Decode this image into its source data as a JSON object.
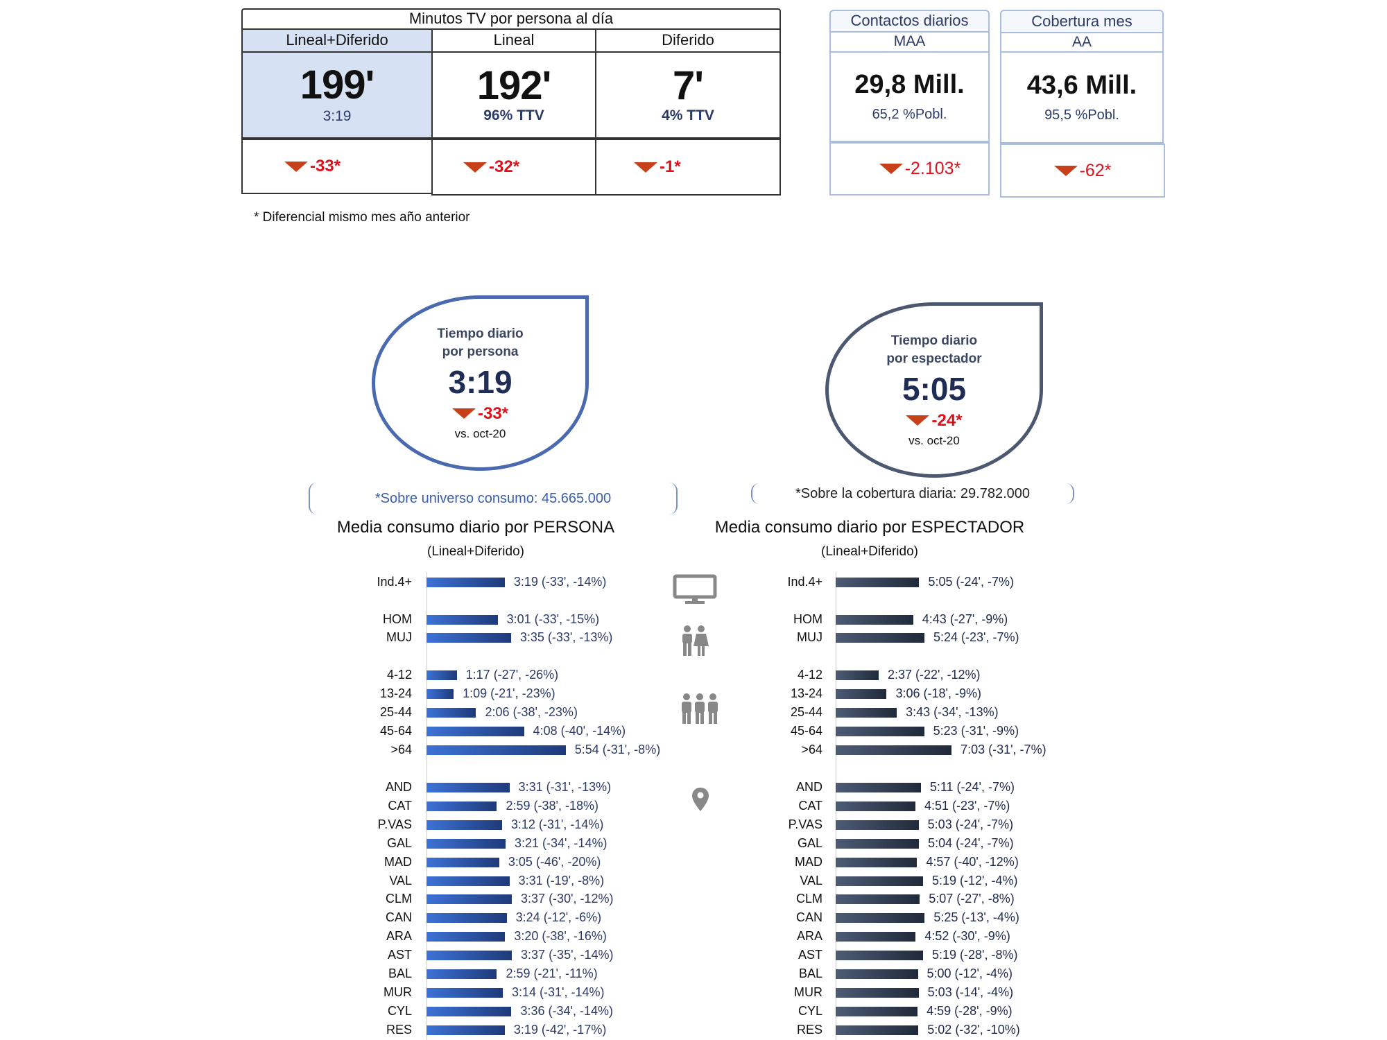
{
  "top_table": {
    "title": "Minutos TV por persona al día",
    "columns": [
      {
        "header": "Lineal+Diferido",
        "value": "199'",
        "sub": "3:19",
        "delta": "-33*"
      },
      {
        "header": "Lineal",
        "value": "192'",
        "sub": "96% TTV",
        "delta": "-32*"
      },
      {
        "header": "Diferido",
        "value": "7'",
        "sub": "4% TTV",
        "delta": "-1*"
      }
    ],
    "footnote": "* Diferencial  mismo mes año anterior"
  },
  "boxes": [
    {
      "title": "Contactos diarios",
      "sub": "MAA",
      "value": "29,8 Mill.",
      "pct": "65,2 %Pobl.",
      "delta": "-2.103*"
    },
    {
      "title": "Cobertura mes",
      "sub": "AA",
      "value": "43,6 Mill.",
      "pct": "95,5 %Pobl.",
      "delta": "-62*"
    }
  ],
  "drops": [
    {
      "line1": "Tiempo diario",
      "line2": "por persona",
      "value": "3:19",
      "delta": "-33*",
      "vs": "vs. oct-20"
    },
    {
      "line1": "Tiempo diario",
      "line2": "por espectador",
      "value": "5:05",
      "delta": "-24*",
      "vs": "vs. oct-20"
    }
  ],
  "notes": [
    "*Sobre universo consumo: 45.665.000",
    "*Sobre la cobertura diaria: 29.782.000"
  ],
  "panels": [
    {
      "title": "Media consumo diario por PERSONA",
      "subtitle": "(Lineal+Diferido)"
    },
    {
      "title": "Media consumo diario por ESPECTADOR",
      "subtitle": "(Lineal+Diferido)"
    }
  ],
  "colors": {
    "persona_bar": "#2f5fc0",
    "espectador_bar": "#333f55",
    "delta": "#e0101a",
    "arrow": "#c8401a",
    "value_text": "#2b3a66"
  },
  "icons": [
    "tv-icon",
    "couple-icon",
    "group-icon",
    "location-pin-icon"
  ],
  "chart_data": {
    "type": "bar",
    "categories": [
      "Ind.4+",
      "HOM",
      "MUJ",
      "4-12",
      "13-24",
      "25-44",
      "45-64",
      ">64",
      "AND",
      "CAT",
      "P.VAS",
      "GAL",
      "MAD",
      "VAL",
      "CLM",
      "CAN",
      "ARA",
      "AST",
      "BAL",
      "MUR",
      "CYL",
      "RES"
    ],
    "series": [
      {
        "name": "Media consumo diario por PERSONA",
        "labels": [
          "3:19 (-33', -14%)",
          "3:01 (-33', -15%)",
          "3:35 (-33', -13%)",
          "1:17 (-27', -26%)",
          "1:09 (-21', -23%)",
          "2:06 (-38', -23%)",
          "4:08 (-40', -14%)",
          "5:54 (-31', -8%)",
          "3:31 (-31', -13%)",
          "2:59 (-38', -18%)",
          "3:12 (-31', -14%)",
          "3:21 (-34', -14%)",
          "3:05 (-46', -20%)",
          "3:31 (-19', -8%)",
          "3:37 (-30', -12%)",
          "3:24 (-12', -6%)",
          "3:20 (-38', -16%)",
          "3:37 (-35', -14%)",
          "2:59 (-21', -11%)",
          "3:14 (-31', -14%)",
          "3:36 (-34', -14%)",
          "3:19 (-42', -17%)"
        ]
      },
      {
        "name": "Media consumo diario por ESPECTADOR",
        "labels": [
          "5:05 (-24', -7%)",
          "4:43 (-27', -9%)",
          "5:24 (-23', -7%)",
          "2:37 (-22', -12%)",
          "3:06 (-18', -9%)",
          "3:43 (-34', -13%)",
          "5:23 (-31', -9%)",
          "7:03 (-31', -7%)",
          "5:11 (-24', -7%)",
          "4:51 (-23', -7%)",
          "5:03 (-24', -7%)",
          "5:04 (-24', -7%)",
          "4:57 (-40', -12%)",
          "5:19 (-12', -4%)",
          "5:07 (-27', -8%)",
          "5:25 (-13', -4%)",
          "4:52 (-30', -9%)",
          "5:19 (-28', -8%)",
          "5:00 (-12', -4%)",
          "5:03 (-14', -4%)",
          "4:59 (-28', -9%)",
          "5:02 (-32', -10%)"
        ]
      }
    ]
  }
}
